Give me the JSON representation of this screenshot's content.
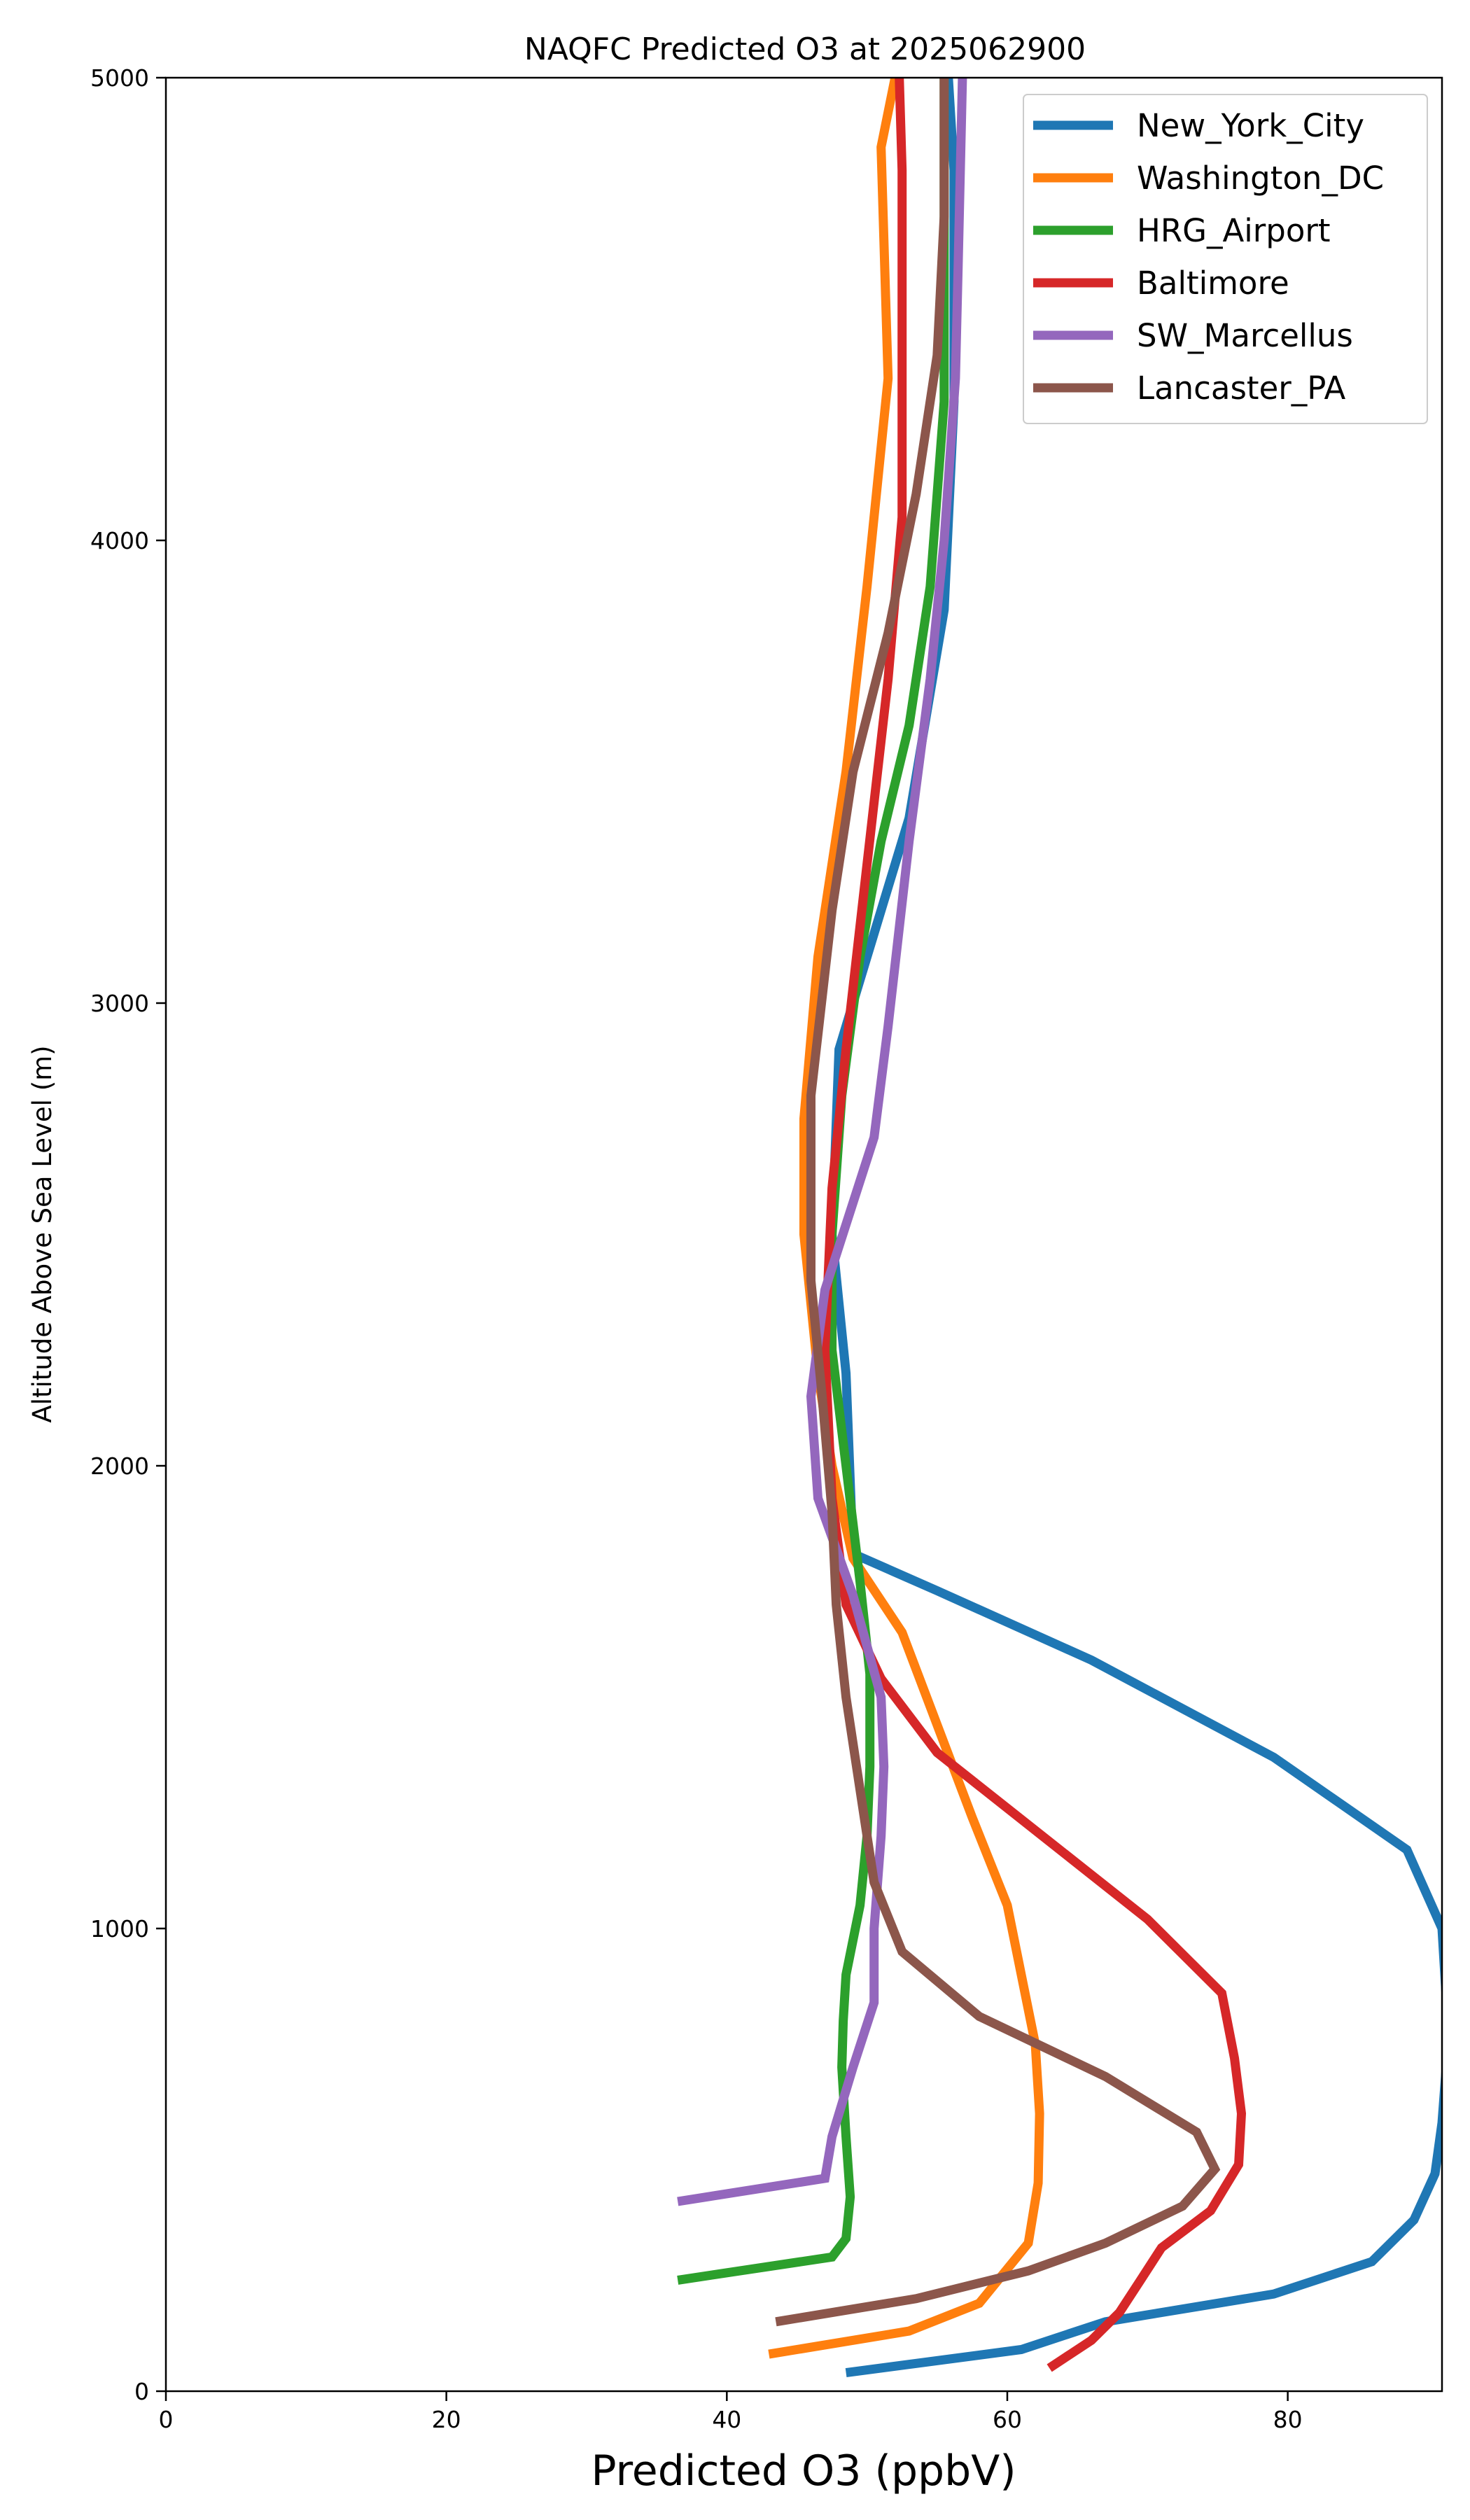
{
  "chart_data": {
    "type": "line",
    "title": "NAQFC Predicted O3 at 2025062900",
    "xlabel": "Predicted O3 (ppbV)",
    "ylabel": "Altitude Above Sea Level (m)",
    "xlim": [
      0,
      91
    ],
    "ylim": [
      0,
      5000
    ],
    "xticks": [
      "0",
      "20",
      "40",
      "60",
      "80"
    ],
    "yticks": [
      "0",
      "1000",
      "2000",
      "3000",
      "4000",
      "5000"
    ],
    "grid": false,
    "legend_position": "top-right",
    "series": [
      {
        "name": "New_York_City",
        "color": "#1f77b4",
        "points": [
          [
            48.5,
            40
          ],
          [
            61,
            90
          ],
          [
            67,
            150
          ],
          [
            79,
            210
          ],
          [
            86,
            280
          ],
          [
            89,
            370
          ],
          [
            90.5,
            470
          ],
          [
            91,
            580
          ],
          [
            91.3,
            700
          ],
          [
            91.3,
            850
          ],
          [
            91,
            1000
          ],
          [
            88.5,
            1170
          ],
          [
            79,
            1370
          ],
          [
            66,
            1580
          ],
          [
            55,
            1730
          ],
          [
            49,
            1810
          ],
          [
            48.5,
            2200
          ],
          [
            47.5,
            2500
          ],
          [
            48,
            2900
          ],
          [
            50,
            3100
          ],
          [
            53,
            3400
          ],
          [
            55.5,
            3850
          ],
          [
            56.2,
            4300
          ],
          [
            56.2,
            4800
          ],
          [
            55.8,
            5000
          ]
        ]
      },
      {
        "name": "Washington_DC",
        "color": "#ff7f0e",
        "points": [
          [
            43,
            80
          ],
          [
            53,
            130
          ],
          [
            58,
            190
          ],
          [
            61.5,
            320
          ],
          [
            62.2,
            450
          ],
          [
            62.3,
            600
          ],
          [
            62,
            750
          ],
          [
            61,
            900
          ],
          [
            60,
            1050
          ],
          [
            57.5,
            1240
          ],
          [
            55,
            1440
          ],
          [
            52.5,
            1640
          ],
          [
            49,
            1800
          ],
          [
            47.5,
            2000
          ],
          [
            46.5,
            2200
          ],
          [
            45.5,
            2500
          ],
          [
            45.5,
            2750
          ],
          [
            46.5,
            3100
          ],
          [
            48.5,
            3500
          ],
          [
            50,
            3900
          ],
          [
            51.5,
            4350
          ],
          [
            51,
            4850
          ],
          [
            52,
            5000
          ]
        ]
      },
      {
        "name": "HRG_Airport",
        "color": "#2ca02c",
        "points": [
          [
            36.5,
            240
          ],
          [
            47.5,
            290
          ],
          [
            48.5,
            330
          ],
          [
            48.8,
            420
          ],
          [
            48.5,
            550
          ],
          [
            48.2,
            700
          ],
          [
            48.3,
            800
          ],
          [
            48.5,
            900
          ],
          [
            49.5,
            1050
          ],
          [
            50,
            1200
          ],
          [
            50.2,
            1350
          ],
          [
            50.2,
            1550
          ],
          [
            49.5,
            1750
          ],
          [
            48.5,
            2000
          ],
          [
            47.5,
            2250
          ],
          [
            47.5,
            2500
          ],
          [
            48.2,
            2800
          ],
          [
            49.5,
            3100
          ],
          [
            51,
            3350
          ],
          [
            53,
            3600
          ],
          [
            54.5,
            3900
          ],
          [
            55.5,
            4300
          ],
          [
            55.5,
            4700
          ],
          [
            55.5,
            5000
          ]
        ]
      },
      {
        "name": "Baltimore",
        "color": "#d62728",
        "points": [
          [
            63,
            50
          ],
          [
            66,
            110
          ],
          [
            68,
            170
          ],
          [
            69.5,
            240
          ],
          [
            71,
            310
          ],
          [
            74.5,
            390
          ],
          [
            76.5,
            490
          ],
          [
            76.7,
            600
          ],
          [
            76.2,
            720
          ],
          [
            75.3,
            860
          ],
          [
            70,
            1020
          ],
          [
            62.5,
            1200
          ],
          [
            55,
            1380
          ],
          [
            51,
            1540
          ],
          [
            48.5,
            1700
          ],
          [
            47.5,
            1930
          ],
          [
            47,
            2250
          ],
          [
            47.5,
            2600
          ],
          [
            48.5,
            2900
          ],
          [
            50,
            3300
          ],
          [
            51.5,
            3700
          ],
          [
            52.5,
            4050
          ],
          [
            52.5,
            4400
          ],
          [
            52.5,
            4800
          ],
          [
            52.3,
            5000
          ]
        ]
      },
      {
        "name": "SW_Marcellus",
        "color": "#9467bd",
        "points": [
          [
            36.5,
            410
          ],
          [
            47,
            460
          ],
          [
            47.5,
            550
          ],
          [
            49,
            700
          ],
          [
            50.5,
            840
          ],
          [
            50.5,
            1000
          ],
          [
            51,
            1200
          ],
          [
            51.2,
            1350
          ],
          [
            51,
            1500
          ],
          [
            49,
            1720
          ],
          [
            46.5,
            1930
          ],
          [
            46,
            2150
          ],
          [
            47,
            2380
          ],
          [
            50.5,
            2710
          ],
          [
            51.5,
            2950
          ],
          [
            53,
            3350
          ],
          [
            54.5,
            3700
          ],
          [
            55.5,
            4000
          ],
          [
            56.3,
            4350
          ],
          [
            56.5,
            4600
          ],
          [
            56.8,
            5000
          ]
        ]
      },
      {
        "name": "Lancaster_PA",
        "color": "#8c564b",
        "points": [
          [
            43.5,
            150
          ],
          [
            53.5,
            200
          ],
          [
            61.5,
            260
          ],
          [
            67,
            320
          ],
          [
            72.5,
            400
          ],
          [
            74.8,
            480
          ],
          [
            73.5,
            560
          ],
          [
            67,
            680
          ],
          [
            58,
            810
          ],
          [
            52.5,
            950
          ],
          [
            50.5,
            1100
          ],
          [
            49.5,
            1300
          ],
          [
            48.5,
            1500
          ],
          [
            47.8,
            1700
          ],
          [
            47.5,
            1900
          ],
          [
            46.8,
            2150
          ],
          [
            46,
            2400
          ],
          [
            46,
            2800
          ],
          [
            47.5,
            3200
          ],
          [
            49,
            3500
          ],
          [
            51.5,
            3800
          ],
          [
            53.5,
            4100
          ],
          [
            55,
            4400
          ],
          [
            55.5,
            4700
          ],
          [
            55.5,
            5000
          ]
        ]
      }
    ]
  }
}
